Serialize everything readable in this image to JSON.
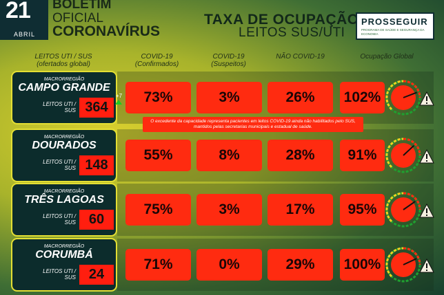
{
  "header": {
    "day": "21",
    "month": "ABRIL",
    "boletim_line1": "BOLETIM",
    "boletim_line2": "OFICIAL",
    "boletim_line3": "CORONAVÍRUS",
    "title": "TAXA DE OCUPAÇÃO",
    "subtitle": "LEITOS SUS/UTI",
    "logo_main": "PROSSEGUIR",
    "logo_sub": "PROGRAMA DE SAÚDE E SEGURANÇA DA ECONOMIA"
  },
  "columns": {
    "leitos": "LEITOS UTI / SUS",
    "leitos_sub": "(ofertados global)",
    "confirmados": "COVID-19",
    "confirmados_sub": "(Confirmados)",
    "suspeitos": "COVID-19",
    "suspeitos_sub": "(Suspeitos)",
    "nao_covid": "NÃO COVID-19",
    "global": "Ocupação Global"
  },
  "note": "O excedente da capacidade representa pacientes em leitos COVID-19 ainda não habilitados pelo SUS, mantidos pelas secretarias municipais e estadual de saúde.",
  "macro_label": "MACRORREGIÃO",
  "leitos_label": "LEITOS UTI / SUS",
  "rows": [
    {
      "region": "CAMPO GRANDE",
      "beds": "364",
      "delta": "+7",
      "confirmados": "73%",
      "suspeitos": "3%",
      "nao_covid": "26%",
      "global": "102%",
      "global_value": 102
    },
    {
      "region": "DOURADOS",
      "beds": "148",
      "confirmados": "55%",
      "suspeitos": "8%",
      "nao_covid": "28%",
      "global": "91%",
      "global_value": 91
    },
    {
      "region": "TRÊS LAGOAS",
      "beds": "60",
      "confirmados": "75%",
      "suspeitos": "3%",
      "nao_covid": "17%",
      "global": "95%",
      "global_value": 95
    },
    {
      "region": "CORUMBÁ",
      "beds": "24",
      "confirmados": "71%",
      "suspeitos": "0%",
      "nao_covid": "29%",
      "global": "100%",
      "global_value": 100
    }
  ],
  "colors": {
    "alert_red": "#ff2b10",
    "region_bg": "#0c2c2c",
    "region_border": "#e4df33"
  }
}
